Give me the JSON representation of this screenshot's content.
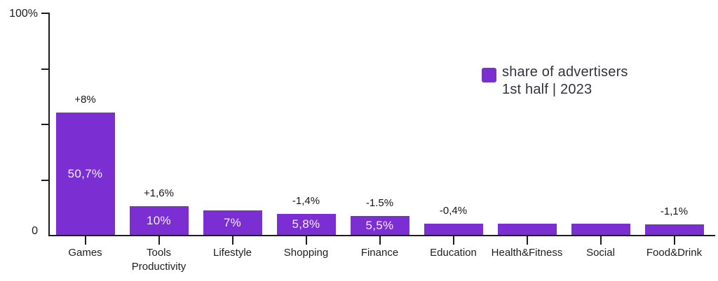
{
  "chart_data": {
    "type": "bar",
    "title": "",
    "legend": {
      "lines": [
        "share of advertisers",
        "1st half | 2023"
      ],
      "position": "top-right"
    },
    "colors": {
      "bar": "#7b2fd2",
      "axis": "#1c1c1c",
      "bar_label_text": "#f3edfb",
      "legend_text": "#33333d"
    },
    "y_axis": {
      "min": 0,
      "max": 100,
      "tick_step": 25,
      "top_label": "100%",
      "zero_label": "0",
      "grid": false
    },
    "ylim": [
      0,
      100
    ],
    "categories": [
      "Games",
      "Tools Productivity",
      "Lifestyle",
      "Shopping",
      "Finance",
      "Education",
      "Health&Fitness",
      "Social",
      "Food&Drink"
    ],
    "bars": [
      {
        "category_lines": [
          "Games"
        ],
        "share_label": "50,7%",
        "share_value": 50.7,
        "delta_label": "+8%",
        "display_pct": 55.0
      },
      {
        "category_lines": [
          "Tools",
          "Productivity"
        ],
        "share_label": "10%",
        "share_value": 10,
        "delta_label": "+1,6%",
        "display_pct": 12.9
      },
      {
        "category_lines": [
          "Lifestyle"
        ],
        "share_label": "7%",
        "share_value": 7,
        "delta_label": null,
        "display_pct": 11.0
      },
      {
        "category_lines": [
          "Shopping"
        ],
        "share_label": "5,8%",
        "share_value": 5.8,
        "delta_label": "-1,4%",
        "display_pct": 9.4
      },
      {
        "category_lines": [
          "Finance"
        ],
        "share_label": "5,5%",
        "share_value": 5.5,
        "delta_label": "-1.5%",
        "display_pct": 8.5
      },
      {
        "category_lines": [
          "Education"
        ],
        "share_label": null,
        "share_value": null,
        "delta_label": "-0,4%",
        "display_pct": 5.0
      },
      {
        "category_lines": [
          "Health&Fitness"
        ],
        "share_label": null,
        "share_value": null,
        "delta_label": null,
        "display_pct": 5.0
      },
      {
        "category_lines": [
          "Social"
        ],
        "share_label": null,
        "share_value": null,
        "delta_label": null,
        "display_pct": 5.0
      },
      {
        "category_lines": [
          "Food&Drink"
        ],
        "share_label": null,
        "share_value": null,
        "delta_label": "-1,1%",
        "display_pct": 4.7
      }
    ]
  }
}
